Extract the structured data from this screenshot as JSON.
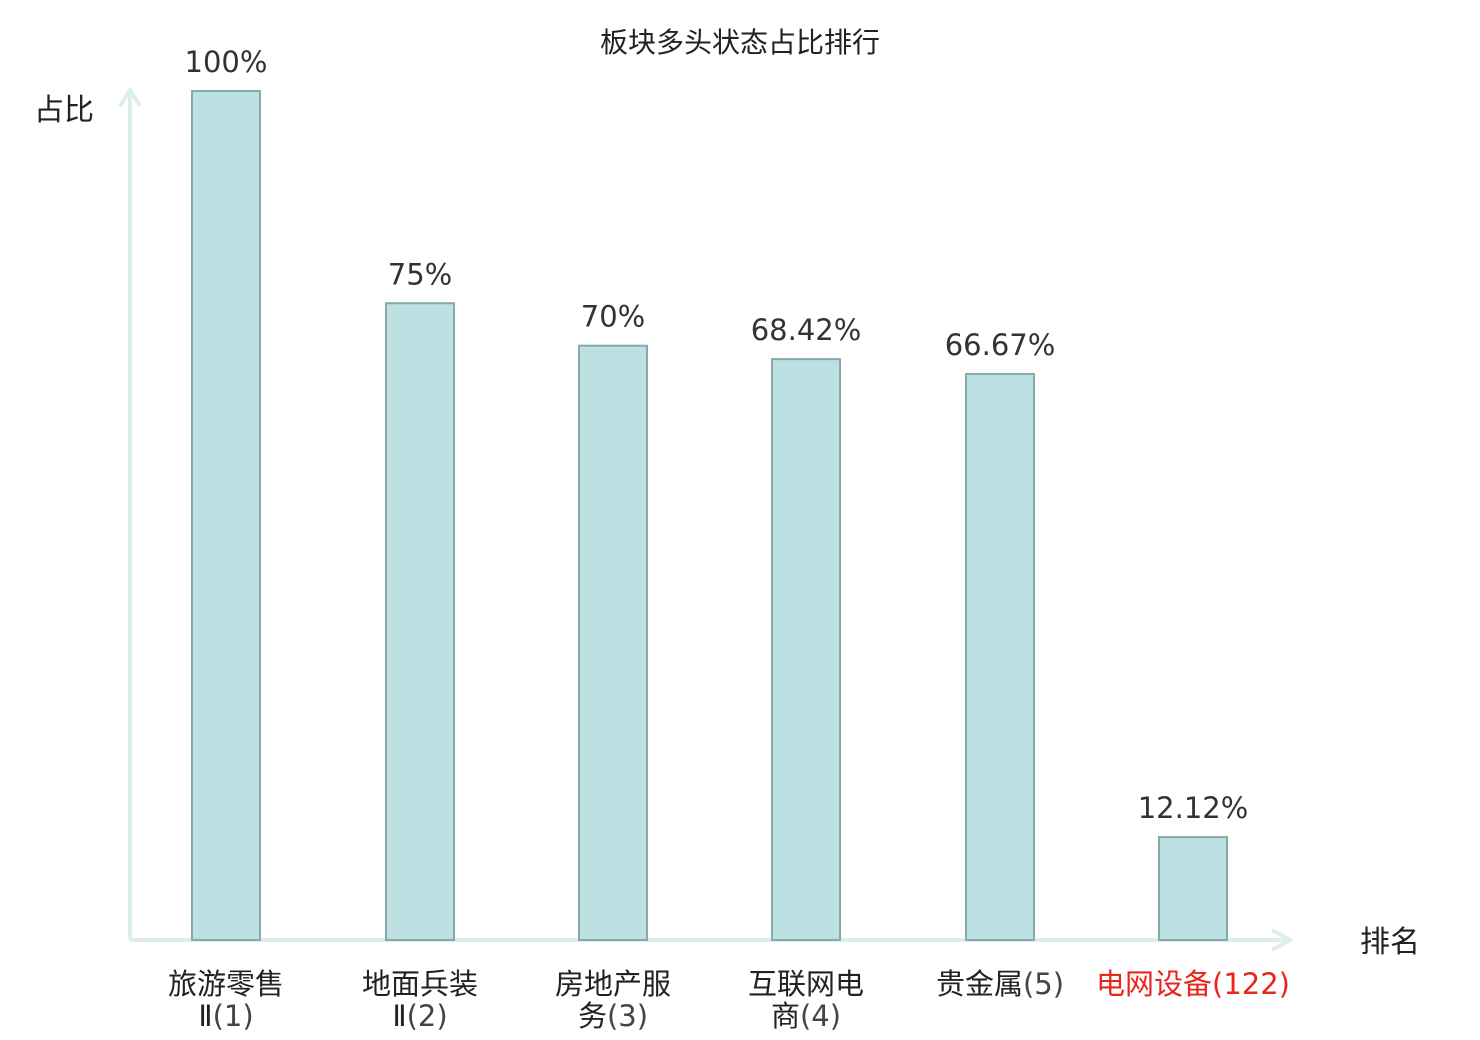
{
  "chart_data": {
    "type": "bar",
    "title": "板块多头状态占比排行",
    "ylabel": "占比",
    "xlabel": "排名",
    "ylim": [
      0,
      100
    ],
    "grid": false,
    "legend": "none",
    "categories": [
      {
        "lines": [
          "旅游零售",
          "Ⅱ"
        ],
        "rank": "(1)",
        "highlight": false
      },
      {
        "lines": [
          "地面兵装",
          "Ⅱ"
        ],
        "rank": "(2)",
        "highlight": false
      },
      {
        "lines": [
          "房地产服",
          "务"
        ],
        "rank": "(3)",
        "highlight": false
      },
      {
        "lines": [
          "互联网电",
          "商"
        ],
        "rank": "(4)",
        "highlight": false
      },
      {
        "lines": [
          "贵金属"
        ],
        "rank": "(5)",
        "highlight": false
      },
      {
        "lines": [
          "电网设备"
        ],
        "rank": "(122)",
        "highlight": true
      }
    ],
    "values": [
      100,
      75,
      70,
      68.42,
      66.67,
      12.12
    ],
    "value_labels": [
      "100%",
      "75%",
      "70%",
      "68.42%",
      "66.67%",
      "12.12%"
    ]
  },
  "colors": {
    "bar_fill": "#bde0e3",
    "bar_stroke": "#86a9ab",
    "axis": "#dcefeb",
    "highlight": "#e8261e"
  }
}
